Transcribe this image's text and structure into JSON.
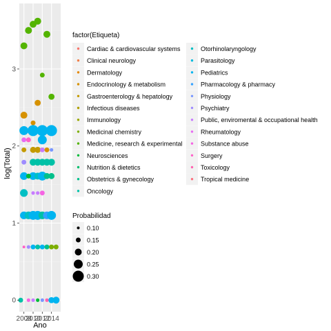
{
  "chart_data": {
    "type": "scatter",
    "xlabel": "Ano",
    "ylabel": "log(Total)",
    "x_ticks": [
      "2008",
      "2010",
      "2012",
      "2014"
    ],
    "y_ticks": [
      "0",
      "1",
      "2",
      "3"
    ],
    "xlim": [
      2007,
      2016
    ],
    "ylim": [
      -0.15,
      3.85
    ],
    "legend_color_title": "factor(Etiqueta)",
    "legend_size_title": "Probabilidad",
    "categories": [
      {
        "name": "Cardiac & cardiovascular systems",
        "color": "#F8766D"
      },
      {
        "name": "Clinical neurology",
        "color": "#EF7F49"
      },
      {
        "name": "Dermatology",
        "color": "#E58700"
      },
      {
        "name": "Endocrinology & metabolism",
        "color": "#D69100"
      },
      {
        "name": "Gastroenterology & hepatology",
        "color": "#C49A00"
      },
      {
        "name": "Infectious diseases",
        "color": "#B0A000"
      },
      {
        "name": "Immunology",
        "color": "#99A800"
      },
      {
        "name": "Medicinal chemistry",
        "color": "#7CAE00"
      },
      {
        "name": "Medicine, research & experimental",
        "color": "#53B400"
      },
      {
        "name": "Neurosciences",
        "color": "#00BA38"
      },
      {
        "name": "Nutrition & dietetics",
        "color": "#00BE6C"
      },
      {
        "name": "Obstetrics & gynecology",
        "color": "#00C08B"
      },
      {
        "name": "Oncology",
        "color": "#00C1A7"
      },
      {
        "name": "Otorhinolaryngology",
        "color": "#00BFC4"
      },
      {
        "name": "Parasitology",
        "color": "#00BADE"
      },
      {
        "name": "Pediatrics",
        "color": "#00B4F0"
      },
      {
        "name": "Pharmacology & pharmacy",
        "color": "#35A2FF"
      },
      {
        "name": "Physiology",
        "color": "#7997FF"
      },
      {
        "name": "Psychiatry",
        "color": "#9F8CFF"
      },
      {
        "name": "Public, enviromental & occupational health",
        "color": "#C77CFF"
      },
      {
        "name": "Rheumatology",
        "color": "#E76BF3"
      },
      {
        "name": "Substance abuse",
        "color": "#F564E3"
      },
      {
        "name": "Surgery",
        "color": "#FF61C9"
      },
      {
        "name": "Toxicology",
        "color": "#FF64B0"
      },
      {
        "name": "Tropical medicine",
        "color": "#FC717F"
      }
    ],
    "size_legend": [
      {
        "label": "0.10",
        "value": 0.1
      },
      {
        "label": "0.15",
        "value": 0.15
      },
      {
        "label": "0.20",
        "value": 0.2
      },
      {
        "label": "0.25",
        "value": 0.25
      },
      {
        "label": "0.30",
        "value": 0.3
      }
    ],
    "points": [
      {
        "x": 2008,
        "y": 3.3,
        "cat": 8,
        "p": 0.2
      },
      {
        "x": 2009,
        "y": 3.5,
        "cat": 8,
        "p": 0.2
      },
      {
        "x": 2010,
        "y": 3.58,
        "cat": 8,
        "p": 0.2
      },
      {
        "x": 2011,
        "y": 3.62,
        "cat": 8,
        "p": 0.2
      },
      {
        "x": 2012,
        "y": 2.92,
        "cat": 8,
        "p": 0.15
      },
      {
        "x": 2013,
        "y": 3.45,
        "cat": 8,
        "p": 0.2
      },
      {
        "x": 2014,
        "y": 2.64,
        "cat": 8,
        "p": 0.18
      },
      {
        "x": 2008,
        "y": 2.4,
        "cat": 3,
        "p": 0.2
      },
      {
        "x": 2010,
        "y": 2.3,
        "cat": 3,
        "p": 0.15
      },
      {
        "x": 2011,
        "y": 2.56,
        "cat": 3,
        "p": 0.18
      },
      {
        "x": 2008,
        "y": 2.2,
        "cat": 15,
        "p": 0.25
      },
      {
        "x": 2010,
        "y": 2.2,
        "cat": 15,
        "p": 0.3
      },
      {
        "x": 2012,
        "y": 2.2,
        "cat": 15,
        "p": 0.3
      },
      {
        "x": 2014,
        "y": 2.2,
        "cat": 15,
        "p": 0.3
      },
      {
        "x": 2012,
        "y": 2.08,
        "cat": 15,
        "p": 0.25
      },
      {
        "x": 2008,
        "y": 2.08,
        "cat": 20,
        "p": 0.15
      },
      {
        "x": 2009,
        "y": 2.08,
        "cat": 22,
        "p": 0.15
      },
      {
        "x": 2008,
        "y": 1.95,
        "cat": 4,
        "p": 0.15
      },
      {
        "x": 2010,
        "y": 1.95,
        "cat": 4,
        "p": 0.18
      },
      {
        "x": 2011,
        "y": 1.95,
        "cat": 4,
        "p": 0.18
      },
      {
        "x": 2012,
        "y": 1.95,
        "cat": 19,
        "p": 0.15
      },
      {
        "x": 2013,
        "y": 1.95,
        "cat": 3,
        "p": 0.15
      },
      {
        "x": 2014,
        "y": 1.95,
        "cat": 17,
        "p": 0.12
      },
      {
        "x": 2008,
        "y": 1.79,
        "cat": 18,
        "p": 0.15
      },
      {
        "x": 2010,
        "y": 1.79,
        "cat": 12,
        "p": 0.2
      },
      {
        "x": 2011,
        "y": 1.79,
        "cat": 12,
        "p": 0.2
      },
      {
        "x": 2012,
        "y": 1.79,
        "cat": 12,
        "p": 0.2
      },
      {
        "x": 2013,
        "y": 1.79,
        "cat": 12,
        "p": 0.2
      },
      {
        "x": 2014,
        "y": 1.79,
        "cat": 12,
        "p": 0.2
      },
      {
        "x": 2008,
        "y": 1.61,
        "cat": 15,
        "p": 0.22
      },
      {
        "x": 2010,
        "y": 1.61,
        "cat": 15,
        "p": 0.22
      },
      {
        "x": 2011,
        "y": 1.61,
        "cat": 13,
        "p": 0.2
      },
      {
        "x": 2012,
        "y": 1.61,
        "cat": 15,
        "p": 0.25
      },
      {
        "x": 2013,
        "y": 1.61,
        "cat": 11,
        "p": 0.18
      },
      {
        "x": 2014,
        "y": 1.61,
        "cat": 11,
        "p": 0.18
      },
      {
        "x": 2009,
        "y": 1.61,
        "cat": 9,
        "p": 0.15
      },
      {
        "x": 2008,
        "y": 1.39,
        "cat": 13,
        "p": 0.22
      },
      {
        "x": 2010,
        "y": 1.39,
        "cat": 19,
        "p": 0.12
      },
      {
        "x": 2011,
        "y": 1.39,
        "cat": 19,
        "p": 0.12
      },
      {
        "x": 2012,
        "y": 1.39,
        "cat": 21,
        "p": 0.15
      },
      {
        "x": 2008,
        "y": 1.1,
        "cat": 15,
        "p": 0.22
      },
      {
        "x": 2009,
        "y": 1.1,
        "cat": 13,
        "p": 0.22
      },
      {
        "x": 2010,
        "y": 1.1,
        "cat": 15,
        "p": 0.25
      },
      {
        "x": 2011,
        "y": 1.1,
        "cat": 15,
        "p": 0.25
      },
      {
        "x": 2012,
        "y": 1.1,
        "cat": 12,
        "p": 0.22
      },
      {
        "x": 2013,
        "y": 1.1,
        "cat": 16,
        "p": 0.22
      },
      {
        "x": 2014,
        "y": 1.1,
        "cat": 15,
        "p": 0.25
      },
      {
        "x": 2008,
        "y": 0.69,
        "cat": 22,
        "p": 0.1
      },
      {
        "x": 2009,
        "y": 0.69,
        "cat": 18,
        "p": 0.12
      },
      {
        "x": 2010,
        "y": 0.69,
        "cat": 15,
        "p": 0.15
      },
      {
        "x": 2011,
        "y": 0.69,
        "cat": 12,
        "p": 0.15
      },
      {
        "x": 2012,
        "y": 0.69,
        "cat": 15,
        "p": 0.15
      },
      {
        "x": 2013,
        "y": 0.69,
        "cat": 11,
        "p": 0.15
      },
      {
        "x": 2014,
        "y": 0.69,
        "cat": 7,
        "p": 0.15
      },
      {
        "x": 2015,
        "y": 0.69,
        "cat": 7,
        "p": 0.15
      },
      {
        "x": 2007.3,
        "y": 0.0,
        "cat": 12,
        "p": 0.15
      },
      {
        "x": 2009,
        "y": 0.0,
        "cat": 21,
        "p": 0.12
      },
      {
        "x": 2010,
        "y": 0.0,
        "cat": 19,
        "p": 0.12
      },
      {
        "x": 2011,
        "y": 0.0,
        "cat": 9,
        "p": 0.12
      },
      {
        "x": 2012,
        "y": 0.0,
        "cat": 17,
        "p": 0.12
      },
      {
        "x": 2013,
        "y": 0.0,
        "cat": 23,
        "p": 0.12
      },
      {
        "x": 2014,
        "y": 0.0,
        "cat": 15,
        "p": 0.18
      },
      {
        "x": 2015,
        "y": 0.0,
        "cat": 15,
        "p": 0.2
      }
    ]
  }
}
